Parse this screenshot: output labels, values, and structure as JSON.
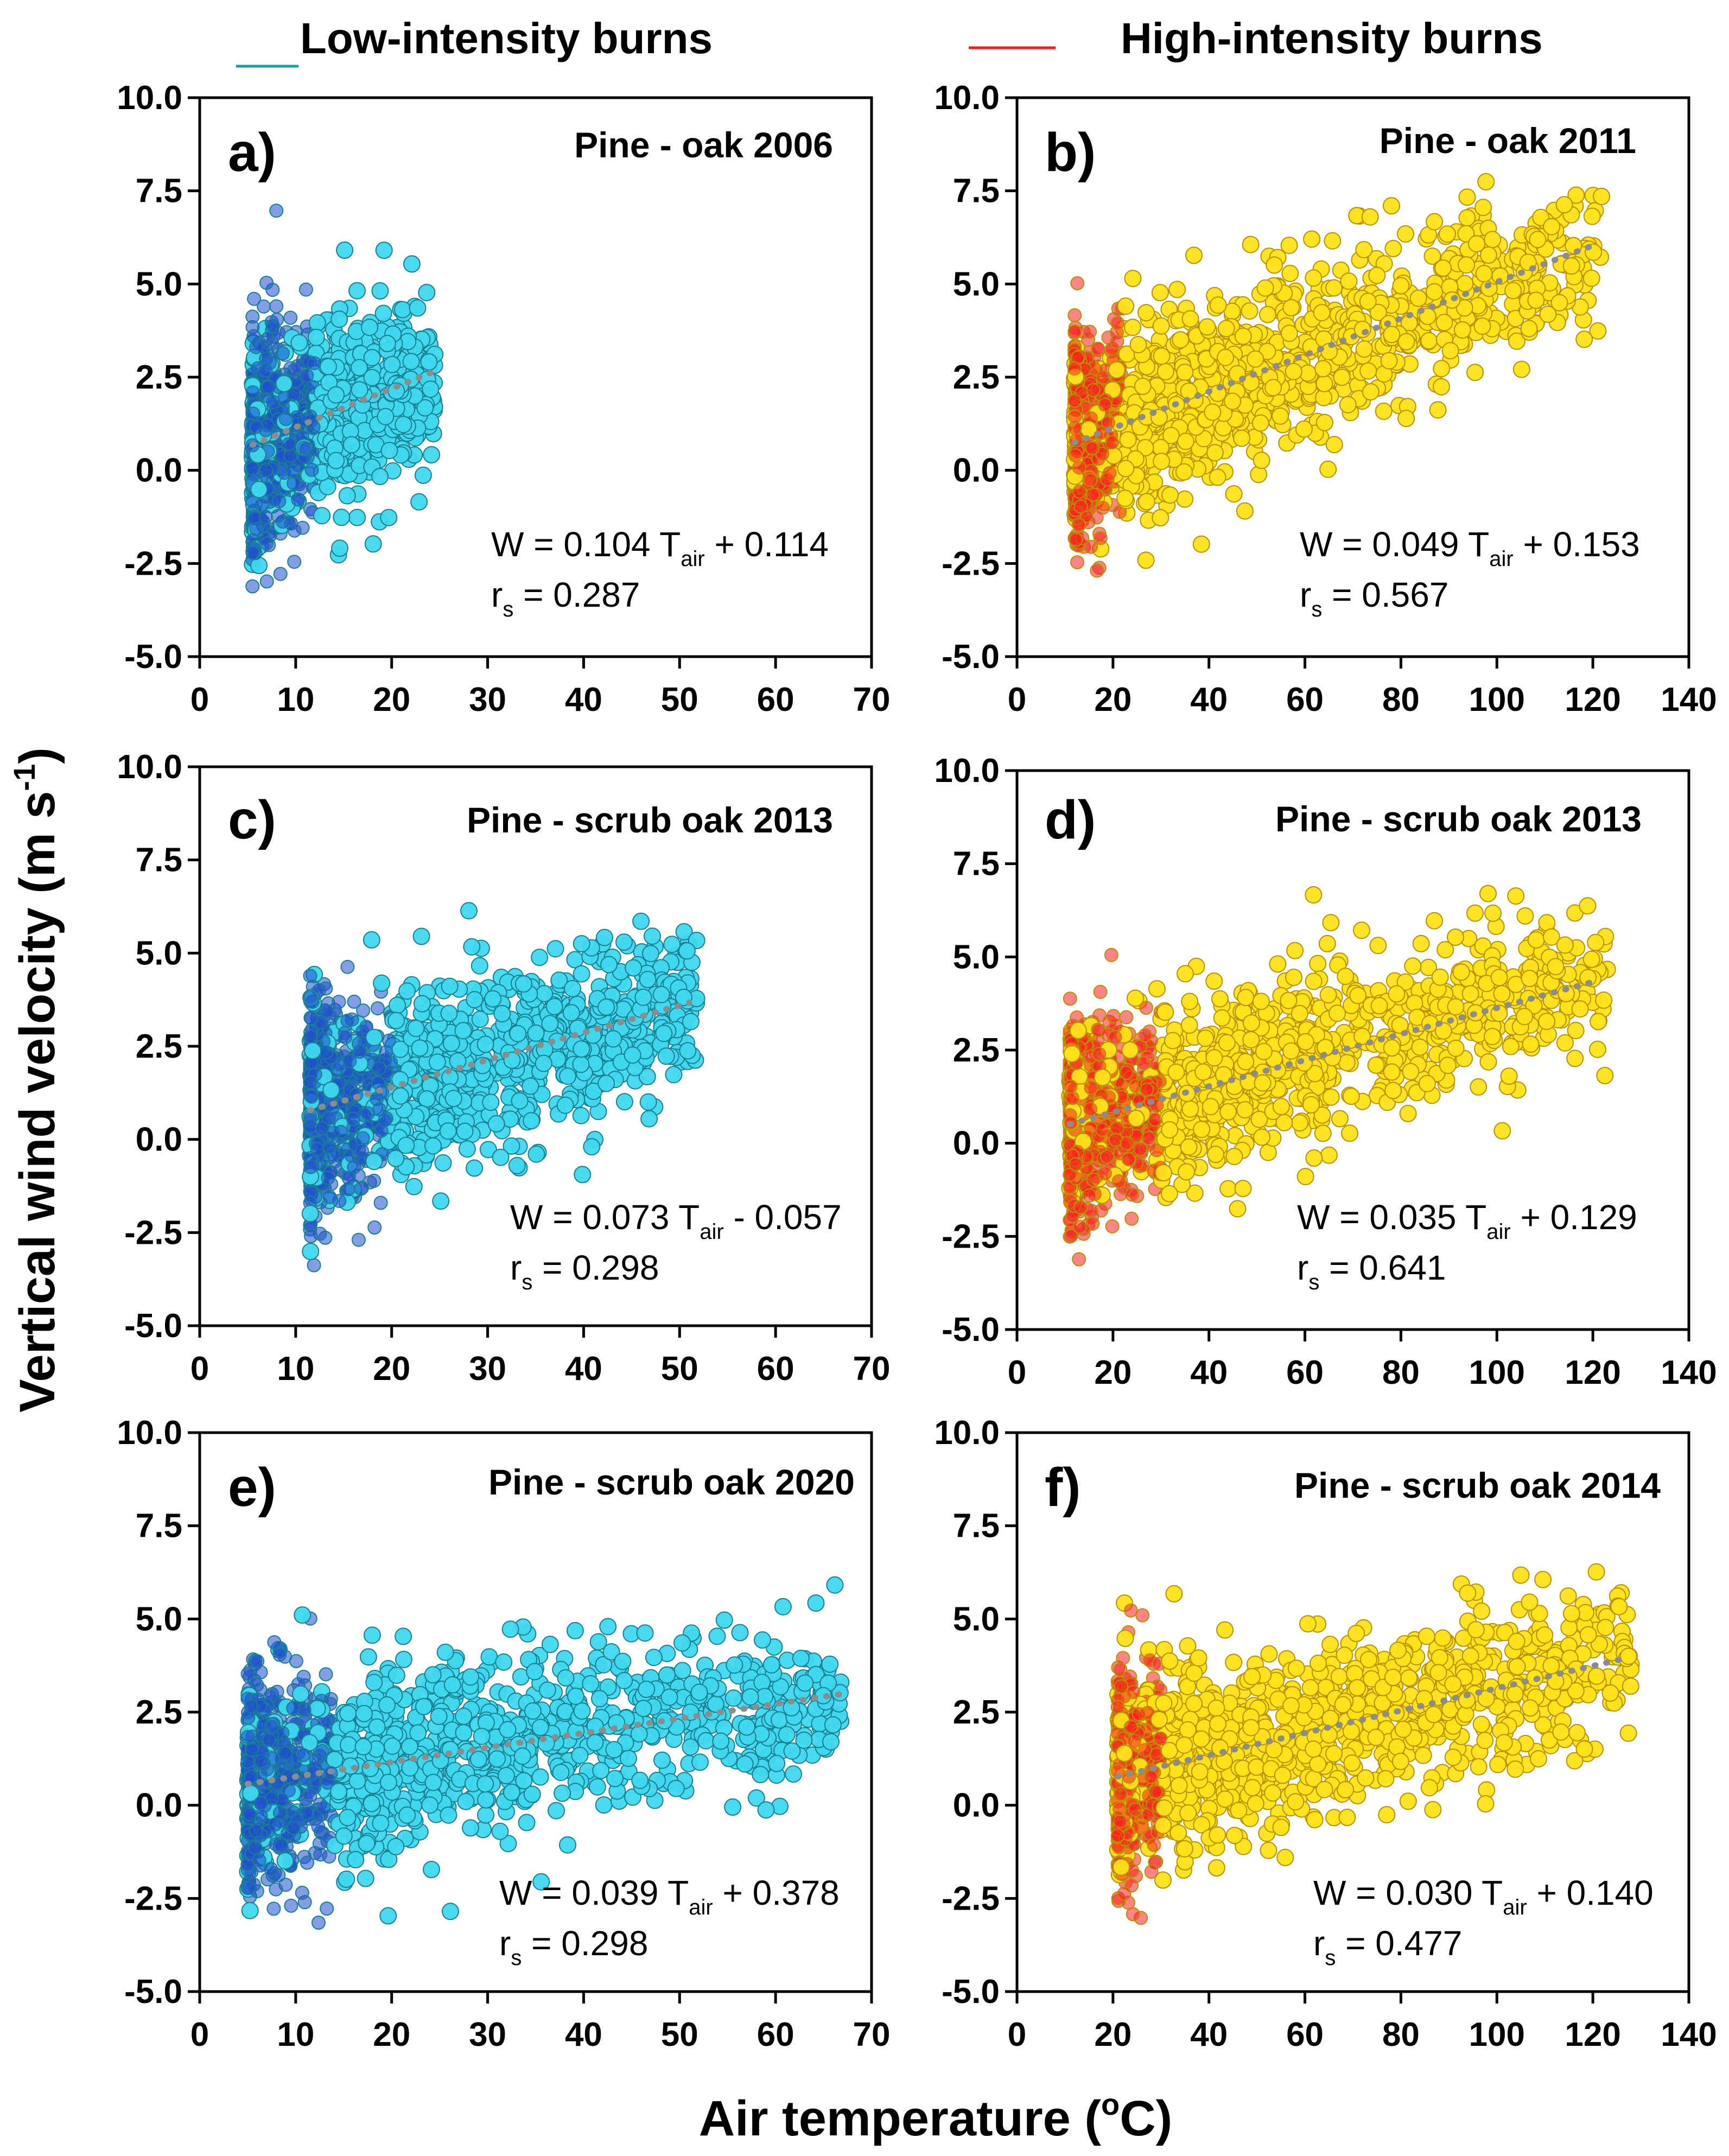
{
  "legend": {
    "low": {
      "label": "Low-intensity burns",
      "color": "#1a9e9a"
    },
    "high": {
      "label": "High-intensity burns",
      "color": "#ff1a1a"
    }
  },
  "axes": {
    "xlabel_main": "Air temperature (",
    "xlabel_sup": "o",
    "xlabel_end": "C)",
    "ylabel_main": "Vertical wind velocity (m s",
    "ylabel_sup": "-1",
    "ylabel_end": ")"
  },
  "colors": {
    "low_fill": "#3fd8ee",
    "low_core": "#1f4fd0",
    "low_edge": "#1b7f92",
    "high_fill": "#ffe31a",
    "high_core": "#ff2020",
    "high_edge": "#b89000",
    "trend": "#8c8c8c"
  },
  "chart_data": [
    {
      "type": "scatter",
      "panel": "a)",
      "title": "Pine - oak 2006",
      "burn": "low",
      "xlim": [
        0,
        70
      ],
      "ylim": [
        -5,
        10
      ],
      "xticks": [
        "0",
        "10",
        "20",
        "30",
        "40",
        "50",
        "60",
        "70"
      ],
      "yticks": [
        "-5.0",
        "-2.5",
        "0.0",
        "2.5",
        "5.0",
        "7.5",
        "10.0"
      ],
      "x_range": [
        5.5,
        24.5
      ],
      "core_x_max": 12,
      "trend": {
        "slope": 0.104,
        "intercept": 0.114,
        "x": [
          5.5,
          24.5
        ]
      },
      "eq": {
        "lhs": "W = 0.104 T",
        "sub": "air",
        "rhs": " + 0.114"
      },
      "rs": {
        "r": "r",
        "sub": "s",
        "rhs": " = 0.287"
      }
    },
    {
      "type": "scatter",
      "panel": "b)",
      "title": "Pine - oak 2011",
      "burn": "high",
      "xlim": [
        0,
        140
      ],
      "ylim": [
        -5,
        10
      ],
      "xticks": [
        "0",
        "20",
        "40",
        "60",
        "80",
        "100",
        "120",
        "140"
      ],
      "yticks": [
        "-5.0",
        "-2.5",
        "0.0",
        "2.5",
        "5.0",
        "7.5",
        "10.0"
      ],
      "x_range": [
        12,
        122
      ],
      "core_x_max": 22,
      "trend": {
        "slope": 0.049,
        "intercept": 0.153,
        "x": [
          12,
          121
        ]
      },
      "eq": {
        "lhs": "W = 0.049 T",
        "sub": "air",
        "rhs": " + 0.153"
      },
      "rs": {
        "r": "r",
        "sub": "s",
        "rhs": " = 0.567"
      }
    },
    {
      "type": "scatter",
      "panel": "c)",
      "title": "Pine - scrub oak 2013",
      "burn": "low",
      "xlim": [
        0,
        70
      ],
      "ylim": [
        -5,
        10
      ],
      "xticks": [
        "0",
        "10",
        "20",
        "30",
        "40",
        "50",
        "60",
        "70"
      ],
      "yticks": [
        "-5.0",
        "-2.5",
        "0.0",
        "2.5",
        "5.0",
        "7.5",
        "10.0"
      ],
      "x_range": [
        11.5,
        52
      ],
      "core_x_max": 20,
      "trend": {
        "slope": 0.073,
        "intercept": -0.057,
        "x": [
          11.5,
          51
        ]
      },
      "eq": {
        "lhs": "W = 0.073 T",
        "sub": "air",
        "rhs": " - 0.057"
      },
      "rs": {
        "r": "r",
        "sub": "s",
        "rhs": " = 0.298"
      }
    },
    {
      "type": "scatter",
      "panel": "d)",
      "title": "Pine - scrub oak 2013",
      "burn": "high",
      "xlim": [
        0,
        140
      ],
      "ylim": [
        -5,
        10
      ],
      "xticks": [
        "0",
        "20",
        "40",
        "60",
        "80",
        "100",
        "120",
        "140"
      ],
      "yticks": [
        "-5.0",
        "-2.5",
        "0.0",
        "2.5",
        "5.0",
        "7.5",
        "10.0"
      ],
      "x_range": [
        11,
        123
      ],
      "core_x_max": 30,
      "trend": {
        "slope": 0.035,
        "intercept": 0.129,
        "x": [
          11,
          121
        ]
      },
      "eq": {
        "lhs": "W = 0.035 T",
        "sub": "air",
        "rhs": " + 0.129"
      },
      "rs": {
        "r": "r",
        "sub": "s",
        "rhs": " = 0.641"
      }
    },
    {
      "type": "scatter",
      "panel": "e)",
      "title": "Pine - scrub oak 2020",
      "burn": "low",
      "xlim": [
        0,
        70
      ],
      "ylim": [
        -5,
        10
      ],
      "xticks": [
        "0",
        "10",
        "20",
        "30",
        "40",
        "50",
        "60",
        "70"
      ],
      "yticks": [
        "-5.0",
        "-2.5",
        "0.0",
        "2.5",
        "5.0",
        "7.5",
        "10.0"
      ],
      "x_range": [
        5,
        67
      ],
      "core_x_max": 14,
      "trend": {
        "slope": 0.039,
        "intercept": 0.378,
        "x": [
          5,
          67
        ]
      },
      "eq": {
        "lhs": "W = 0.039 T",
        "sub": "air",
        "rhs": " + 0.378"
      },
      "rs": {
        "r": "r",
        "sub": "s",
        "rhs": " = 0.298"
      }
    },
    {
      "type": "scatter",
      "panel": "f)",
      "title": "Pine - scrub oak 2014",
      "burn": "high",
      "xlim": [
        0,
        140
      ],
      "ylim": [
        -5,
        10
      ],
      "xticks": [
        "0",
        "20",
        "40",
        "60",
        "80",
        "100",
        "120",
        "140"
      ],
      "yticks": [
        "-5.0",
        "-2.5",
        "0.0",
        "2.5",
        "5.0",
        "7.5",
        "10.0"
      ],
      "x_range": [
        21,
        128
      ],
      "core_x_max": 30,
      "trend": {
        "slope": 0.03,
        "intercept": 0.14,
        "x": [
          21,
          127
        ]
      },
      "eq": {
        "lhs": "W = 0.030 T",
        "sub": "air",
        "rhs": " + 0.140"
      },
      "rs": {
        "r": "r",
        "sub": "s",
        "rhs": " = 0.477"
      }
    }
  ]
}
